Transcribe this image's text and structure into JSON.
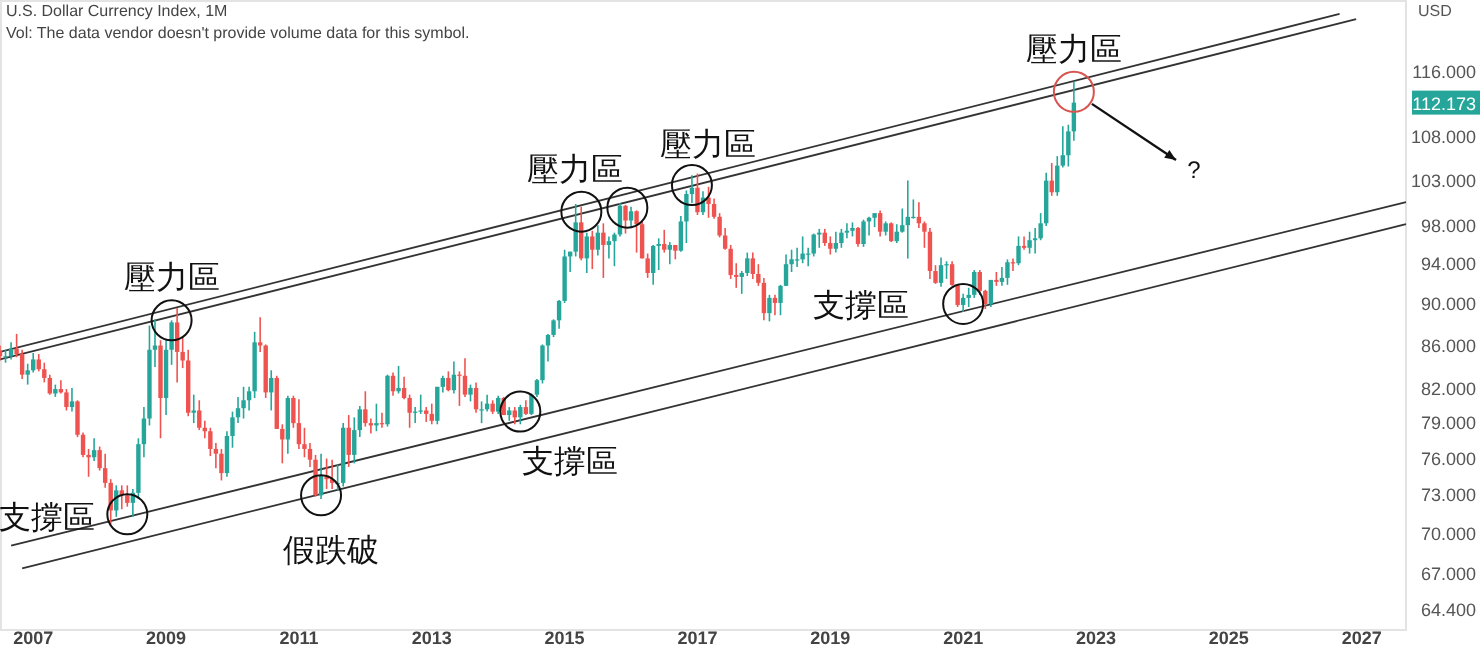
{
  "chart_data": {
    "type": "candlestick",
    "title": "U.S. Dollar Currency Index, 1M",
    "subtitle": "Vol: The data vendor doesn't provide volume data for this symbol.",
    "ylabel": "USD",
    "log": "y",
    "grid": false,
    "xlim": [
      "2006-07",
      "2027-09"
    ],
    "ylim": [
      63,
      125.5
    ],
    "xticks": [
      "2007",
      "2009",
      "2011",
      "2013",
      "2015",
      "2017",
      "2019",
      "2021",
      "2023",
      "2025",
      "2027"
    ],
    "yticks": [
      {
        "value": 64.4,
        "label": "64.400"
      },
      {
        "value": 67,
        "label": "67.000"
      },
      {
        "value": 70,
        "label": "70.000"
      },
      {
        "value": 73,
        "label": "73.000"
      },
      {
        "value": 76,
        "label": "76.000"
      },
      {
        "value": 79,
        "label": "79.000"
      },
      {
        "value": 82,
        "label": "82.000"
      },
      {
        "value": 86,
        "label": "86.000"
      },
      {
        "value": 90,
        "label": "90.000"
      },
      {
        "value": 94,
        "label": "94.000"
      },
      {
        "value": 98,
        "label": "98.000"
      },
      {
        "value": 103,
        "label": "103.000"
      },
      {
        "value": 108,
        "label": "108.000"
      },
      {
        "value": 116,
        "label": "116.000"
      }
    ],
    "x": [
      "2006-07",
      "2006-08",
      "2006-09",
      "2006-10",
      "2006-11",
      "2006-12",
      "2007-01",
      "2007-02",
      "2007-03",
      "2007-04",
      "2007-05",
      "2007-06",
      "2007-07",
      "2007-08",
      "2007-09",
      "2007-10",
      "2007-11",
      "2007-12",
      "2008-01",
      "2008-02",
      "2008-03",
      "2008-04",
      "2008-05",
      "2008-06",
      "2008-07",
      "2008-08",
      "2008-09",
      "2008-10",
      "2008-11",
      "2008-12",
      "2009-01",
      "2009-02",
      "2009-03",
      "2009-04",
      "2009-05",
      "2009-06",
      "2009-07",
      "2009-08",
      "2009-09",
      "2009-10",
      "2009-11",
      "2009-12",
      "2010-01",
      "2010-02",
      "2010-03",
      "2010-04",
      "2010-05",
      "2010-06",
      "2010-07",
      "2010-08",
      "2010-09",
      "2010-10",
      "2010-11",
      "2010-12",
      "2011-01",
      "2011-02",
      "2011-03",
      "2011-04",
      "2011-05",
      "2011-06",
      "2011-07",
      "2011-08",
      "2011-09",
      "2011-10",
      "2011-11",
      "2011-12",
      "2012-01",
      "2012-02",
      "2012-03",
      "2012-04",
      "2012-05",
      "2012-06",
      "2012-07",
      "2012-08",
      "2012-09",
      "2012-10",
      "2012-11",
      "2012-12",
      "2013-01",
      "2013-02",
      "2013-03",
      "2013-04",
      "2013-05",
      "2013-06",
      "2013-07",
      "2013-08",
      "2013-09",
      "2013-10",
      "2013-11",
      "2013-12",
      "2014-01",
      "2014-02",
      "2014-03",
      "2014-04",
      "2014-05",
      "2014-06",
      "2014-07",
      "2014-08",
      "2014-09",
      "2014-10",
      "2014-11",
      "2014-12",
      "2015-01",
      "2015-02",
      "2015-03",
      "2015-04",
      "2015-05",
      "2015-06",
      "2015-07",
      "2015-08",
      "2015-09",
      "2015-10",
      "2015-11",
      "2015-12",
      "2016-01",
      "2016-02",
      "2016-03",
      "2016-04",
      "2016-05",
      "2016-06",
      "2016-07",
      "2016-08",
      "2016-09",
      "2016-10",
      "2016-11",
      "2016-12",
      "2017-01",
      "2017-02",
      "2017-03",
      "2017-04",
      "2017-05",
      "2017-06",
      "2017-07",
      "2017-08",
      "2017-09",
      "2017-10",
      "2017-11",
      "2017-12",
      "2018-01",
      "2018-02",
      "2018-03",
      "2018-04",
      "2018-05",
      "2018-06",
      "2018-07",
      "2018-08",
      "2018-09",
      "2018-10",
      "2018-11",
      "2018-12",
      "2019-01",
      "2019-02",
      "2019-03",
      "2019-04",
      "2019-05",
      "2019-06",
      "2019-07",
      "2019-08",
      "2019-09",
      "2019-10",
      "2019-11",
      "2019-12",
      "2020-01",
      "2020-02",
      "2020-03",
      "2020-04",
      "2020-05",
      "2020-06",
      "2020-07",
      "2020-08",
      "2020-09",
      "2020-10",
      "2020-11",
      "2020-12",
      "2021-01",
      "2021-02",
      "2021-03",
      "2021-04",
      "2021-05",
      "2021-06",
      "2021-07",
      "2021-08",
      "2021-09",
      "2021-10",
      "2021-11",
      "2021-12",
      "2022-01",
      "2022-02",
      "2022-03",
      "2022-04",
      "2022-05",
      "2022-06",
      "2022-07",
      "2022-08",
      "2022-09"
    ],
    "ohlc": [
      [
        85.5,
        86.0,
        84.6,
        85.0
      ],
      [
        85.0,
        85.6,
        84.4,
        85.0
      ],
      [
        85.0,
        86.3,
        84.7,
        85.7
      ],
      [
        85.7,
        87.1,
        84.9,
        85.2
      ],
      [
        85.2,
        85.6,
        82.9,
        83.3
      ],
      [
        83.3,
        84.3,
        82.4,
        83.7
      ],
      [
        83.7,
        85.3,
        83.5,
        84.7
      ],
      [
        84.7,
        85.2,
        83.6,
        83.8
      ],
      [
        83.8,
        84.4,
        82.6,
        83.0
      ],
      [
        83.0,
        83.3,
        81.5,
        81.6
      ],
      [
        81.6,
        82.4,
        81.3,
        82.0
      ],
      [
        82.0,
        82.8,
        81.6,
        81.7
      ],
      [
        81.7,
        82.0,
        80.1,
        80.4
      ],
      [
        80.4,
        82.1,
        80.0,
        80.9
      ],
      [
        80.9,
        81.0,
        77.8,
        78.0
      ],
      [
        78.0,
        78.2,
        76.1,
        76.3
      ],
      [
        76.3,
        76.8,
        74.5,
        76.1
      ],
      [
        76.1,
        77.7,
        75.8,
        76.7
      ],
      [
        76.7,
        77.0,
        75.0,
        75.2
      ],
      [
        75.2,
        76.4,
        73.6,
        74.0
      ],
      [
        74.0,
        74.3,
        70.7,
        71.8
      ],
      [
        71.8,
        73.8,
        71.3,
        73.4
      ],
      [
        73.4,
        73.8,
        71.9,
        73.0
      ],
      [
        73.0,
        73.8,
        72.1,
        72.4
      ],
      [
        72.4,
        73.5,
        71.3,
        73.2
      ],
      [
        73.2,
        77.7,
        72.7,
        77.2
      ],
      [
        77.2,
        80.4,
        76.1,
        79.4
      ],
      [
        79.4,
        87.9,
        78.8,
        85.6
      ],
      [
        85.6,
        88.5,
        84.0,
        86.0
      ],
      [
        86.0,
        86.5,
        77.7,
        81.2
      ],
      [
        81.2,
        86.6,
        79.7,
        85.6
      ],
      [
        85.6,
        88.4,
        84.2,
        88.2
      ],
      [
        88.2,
        89.6,
        82.6,
        85.4
      ],
      [
        85.4,
        86.8,
        83.9,
        84.6
      ],
      [
        84.6,
        85.6,
        79.6,
        79.9
      ],
      [
        79.9,
        81.5,
        79.0,
        80.1
      ],
      [
        80.1,
        81.0,
        78.4,
        78.6
      ],
      [
        78.6,
        79.2,
        77.7,
        78.3
      ],
      [
        78.3,
        78.6,
        76.2,
        76.8
      ],
      [
        76.8,
        77.3,
        75.2,
        76.4
      ],
      [
        76.4,
        76.8,
        74.2,
        74.8
      ],
      [
        74.8,
        78.3,
        74.5,
        77.9
      ],
      [
        77.9,
        80.0,
        76.9,
        79.5
      ],
      [
        79.5,
        81.3,
        79.0,
        80.3
      ],
      [
        80.3,
        82.2,
        79.4,
        81.0
      ],
      [
        81.0,
        82.2,
        80.1,
        81.8
      ],
      [
        81.8,
        87.3,
        81.2,
        86.3
      ],
      [
        86.3,
        88.7,
        85.4,
        86.0
      ],
      [
        86.0,
        86.1,
        81.2,
        81.7
      ],
      [
        81.7,
        83.7,
        80.1,
        83.0
      ],
      [
        83.0,
        83.2,
        78.5,
        78.5
      ],
      [
        78.5,
        78.9,
        75.6,
        77.6
      ],
      [
        77.6,
        81.4,
        76.4,
        81.2
      ],
      [
        81.2,
        81.4,
        78.6,
        79.0
      ],
      [
        79.0,
        81.1,
        76.8,
        77.2
      ],
      [
        77.2,
        78.6,
        76.1,
        76.8
      ],
      [
        76.8,
        77.3,
        75.3,
        75.9
      ],
      [
        75.9,
        76.3,
        72.9,
        73.0
      ],
      [
        73.0,
        76.4,
        72.7,
        74.6
      ],
      [
        74.6,
        76.0,
        73.5,
        74.3
      ],
      [
        74.3,
        75.9,
        73.5,
        74.0
      ],
      [
        74.0,
        75.5,
        73.4,
        74.0
      ],
      [
        74.0,
        79.0,
        73.7,
        78.6
      ],
      [
        78.6,
        79.7,
        75.3,
        76.3
      ],
      [
        76.3,
        79.5,
        75.6,
        78.4
      ],
      [
        78.4,
        80.5,
        77.8,
        80.2
      ],
      [
        80.2,
        81.8,
        78.7,
        79.0
      ],
      [
        79.0,
        79.4,
        78.1,
        78.8
      ],
      [
        78.8,
        80.7,
        78.3,
        79.0
      ],
      [
        79.0,
        79.9,
        78.6,
        78.9
      ],
      [
        78.9,
        83.3,
        78.7,
        83.2
      ],
      [
        83.2,
        83.5,
        81.4,
        81.8
      ],
      [
        81.8,
        84.1,
        81.6,
        82.1
      ],
      [
        82.1,
        83.1,
        81.1,
        81.2
      ],
      [
        81.2,
        81.5,
        78.6,
        79.9
      ],
      [
        79.9,
        80.4,
        79.0,
        80.0
      ],
      [
        80.0,
        81.5,
        79.8,
        80.1
      ],
      [
        80.1,
        80.4,
        79.1,
        79.8
      ],
      [
        79.8,
        80.7,
        78.9,
        79.2
      ],
      [
        79.2,
        82.2,
        78.9,
        82.2
      ],
      [
        82.2,
        83.2,
        81.7,
        83.0
      ],
      [
        83.0,
        83.6,
        81.8,
        81.9
      ],
      [
        81.9,
        84.5,
        81.6,
        83.3
      ],
      [
        83.3,
        83.6,
        80.5,
        83.2
      ],
      [
        83.2,
        84.8,
        81.3,
        81.5
      ],
      [
        81.5,
        82.4,
        80.9,
        82.1
      ],
      [
        82.1,
        82.6,
        79.9,
        80.2
      ],
      [
        80.2,
        80.9,
        79.0,
        80.2
      ],
      [
        80.2,
        81.5,
        80.0,
        80.7
      ],
      [
        80.7,
        81.0,
        79.8,
        80.0
      ],
      [
        80.0,
        81.4,
        79.8,
        81.2
      ],
      [
        81.2,
        81.3,
        79.7,
        79.7
      ],
      [
        79.7,
        80.4,
        79.2,
        80.1
      ],
      [
        80.1,
        80.4,
        78.9,
        79.5
      ],
      [
        79.5,
        80.6,
        78.9,
        80.4
      ],
      [
        80.4,
        81.0,
        79.7,
        79.8
      ],
      [
        79.8,
        81.6,
        79.7,
        81.5
      ],
      [
        81.5,
        82.9,
        81.3,
        82.8
      ],
      [
        82.8,
        86.1,
        82.5,
        86.0
      ],
      [
        86.0,
        87.1,
        84.5,
        87.0
      ],
      [
        87.0,
        88.5,
        86.8,
        88.4
      ],
      [
        88.4,
        90.4,
        87.6,
        90.3
      ],
      [
        90.3,
        95.5,
        90.1,
        94.8
      ],
      [
        94.8,
        95.3,
        93.2,
        95.3
      ],
      [
        95.3,
        100.4,
        94.8,
        98.4
      ],
      [
        98.4,
        100.1,
        94.4,
        94.6
      ],
      [
        94.6,
        97.3,
        93.1,
        96.9
      ],
      [
        96.9,
        97.5,
        93.5,
        95.5
      ],
      [
        95.5,
        98.1,
        94.9,
        97.3
      ],
      [
        97.3,
        98.3,
        92.6,
        96.0
      ],
      [
        96.0,
        96.9,
        94.6,
        96.4
      ],
      [
        96.4,
        97.3,
        93.8,
        97.1
      ],
      [
        97.1,
        100.5,
        96.9,
        100.2
      ],
      [
        100.2,
        100.3,
        97.2,
        98.6
      ],
      [
        98.6,
        100.1,
        97.9,
        99.6
      ],
      [
        99.6,
        99.7,
        95.2,
        98.2
      ],
      [
        98.2,
        98.5,
        94.6,
        94.6
      ],
      [
        94.6,
        95.1,
        92.6,
        93.1
      ],
      [
        93.1,
        96.0,
        91.9,
        95.9
      ],
      [
        95.9,
        96.7,
        93.4,
        96.1
      ],
      [
        96.1,
        97.6,
        95.2,
        95.5
      ],
      [
        95.5,
        96.3,
        94.0,
        96.0
      ],
      [
        96.0,
        96.0,
        94.5,
        95.4
      ],
      [
        95.4,
        99.1,
        95.3,
        98.5
      ],
      [
        98.5,
        101.9,
        96.2,
        101.5
      ],
      [
        101.5,
        103.6,
        100.5,
        102.2
      ],
      [
        102.2,
        103.8,
        99.2,
        99.5
      ],
      [
        99.5,
        101.8,
        99.2,
        101.1
      ],
      [
        101.1,
        102.3,
        98.9,
        100.4
      ],
      [
        100.4,
        101.0,
        98.8,
        99.0
      ],
      [
        99.0,
        99.4,
        96.8,
        97.0
      ],
      [
        97.0,
        97.8,
        95.5,
        95.6
      ],
      [
        95.6,
        96.0,
        92.5,
        92.9
      ],
      [
        92.9,
        94.1,
        91.6,
        92.7
      ],
      [
        92.7,
        93.3,
        91.0,
        93.1
      ],
      [
        93.1,
        95.2,
        92.8,
        94.6
      ],
      [
        94.6,
        95.2,
        92.5,
        93.0
      ],
      [
        93.0,
        94.0,
        91.8,
        92.1
      ],
      [
        92.1,
        92.6,
        88.4,
        89.1
      ],
      [
        89.1,
        90.9,
        88.3,
        90.6
      ],
      [
        90.6,
        90.9,
        88.9,
        90.1
      ],
      [
        90.1,
        91.9,
        88.9,
        91.8
      ],
      [
        91.8,
        95.0,
        91.8,
        94.0
      ],
      [
        94.0,
        95.5,
        93.2,
        94.5
      ],
      [
        94.5,
        95.7,
        93.7,
        94.5
      ],
      [
        94.5,
        96.9,
        94.1,
        95.1
      ],
      [
        95.1,
        95.7,
        93.8,
        95.1
      ],
      [
        95.1,
        97.2,
        94.8,
        97.1
      ],
      [
        97.1,
        97.7,
        95.7,
        97.3
      ],
      [
        97.3,
        97.7,
        95.9,
        96.2
      ],
      [
        96.2,
        96.9,
        95.0,
        95.6
      ],
      [
        95.6,
        97.4,
        95.2,
        96.2
      ],
      [
        96.2,
        97.7,
        95.7,
        97.3
      ],
      [
        97.3,
        98.3,
        96.7,
        97.5
      ],
      [
        97.5,
        98.4,
        96.9,
        97.8
      ],
      [
        97.8,
        97.9,
        95.8,
        96.1
      ],
      [
        96.1,
        98.7,
        95.8,
        98.5
      ],
      [
        98.5,
        99.0,
        97.0,
        98.9
      ],
      [
        98.9,
        99.4,
        97.9,
        99.4
      ],
      [
        99.4,
        99.7,
        96.9,
        97.4
      ],
      [
        97.4,
        98.5,
        97.0,
        98.3
      ],
      [
        98.3,
        98.4,
        96.3,
        96.4
      ],
      [
        96.4,
        98.2,
        96.2,
        97.4
      ],
      [
        97.4,
        99.9,
        97.3,
        98.1
      ],
      [
        98.1,
        103.0,
        94.6,
        99.0
      ],
      [
        99.0,
        100.9,
        98.8,
        99.0
      ],
      [
        99.0,
        100.6,
        97.8,
        98.3
      ],
      [
        98.3,
        98.5,
        95.7,
        97.4
      ],
      [
        97.4,
        97.8,
        92.5,
        93.3
      ],
      [
        93.3,
        93.9,
        92.0,
        92.1
      ],
      [
        92.1,
        94.7,
        91.7,
        93.9
      ],
      [
        93.9,
        94.3,
        92.5,
        94.0
      ],
      [
        94.0,
        94.3,
        91.8,
        91.9
      ],
      [
        91.9,
        92.0,
        89.7,
        89.9
      ],
      [
        89.9,
        91.0,
        89.2,
        90.6
      ],
      [
        90.6,
        91.6,
        89.7,
        90.9
      ],
      [
        90.9,
        93.4,
        90.6,
        93.2
      ],
      [
        93.2,
        93.4,
        90.9,
        91.3
      ],
      [
        91.3,
        91.4,
        89.5,
        90.0
      ],
      [
        90.0,
        92.4,
        89.7,
        92.4
      ],
      [
        92.4,
        93.2,
        91.8,
        92.2
      ],
      [
        92.2,
        93.7,
        91.8,
        92.6
      ],
      [
        92.6,
        94.5,
        91.9,
        94.2
      ],
      [
        94.2,
        94.6,
        93.3,
        94.1
      ],
      [
        94.1,
        96.9,
        93.9,
        95.9
      ],
      [
        95.9,
        96.9,
        95.5,
        95.7
      ],
      [
        95.7,
        97.4,
        95.1,
        96.5
      ],
      [
        96.5,
        97.8,
        95.1,
        96.7
      ],
      [
        96.7,
        99.4,
        96.5,
        98.3
      ],
      [
        98.3,
        103.9,
        98.0,
        103.0
      ],
      [
        103.0,
        105.0,
        101.3,
        101.7
      ],
      [
        101.7,
        105.8,
        101.3,
        104.7
      ],
      [
        104.7,
        109.3,
        104.5,
        105.9
      ],
      [
        105.9,
        109.5,
        104.6,
        108.7
      ],
      [
        108.7,
        114.8,
        107.6,
        112.173
      ]
    ],
    "series": [
      {
        "type": "line",
        "color": "#333333",
        "x": [
          "2006-07",
          "2026-09"
        ],
        "values": [
          85.4,
          123.6
        ]
      },
      {
        "type": "line",
        "color": "#333333",
        "x": [
          "2006-07",
          "2026-12"
        ],
        "values": [
          84.7,
          122.9
        ]
      },
      {
        "type": "line",
        "color": "#333333",
        "x": [
          "2006-09",
          "2027-09"
        ],
        "values": [
          69.1,
          100.6
        ]
      },
      {
        "type": "line",
        "color": "#333333",
        "x": [
          "2006-11",
          "2027-09"
        ],
        "values": [
          67.4,
          98.2
        ]
      }
    ],
    "annotations": [
      {
        "text": "支撐區",
        "x": "2008-06",
        "y": 71.5
      },
      {
        "text": "壓力區",
        "x": "2009-02",
        "y": 88.4
      },
      {
        "text": "假跌破",
        "x": "2011-05",
        "y": 73
      },
      {
        "text": "支撐區",
        "x": "2014-05",
        "y": 80
      },
      {
        "text": "壓力區",
        "x": "2015-08",
        "y": 100
      },
      {
        "text": "壓力區",
        "x": "2016-12",
        "y": 102.5
      },
      {
        "text": "支撐區",
        "x": "2021-01",
        "y": 90
      },
      {
        "text": "壓力區",
        "x": "2022-09",
        "y": 113.5
      },
      "?",
      "112.173"
    ]
  }
}
